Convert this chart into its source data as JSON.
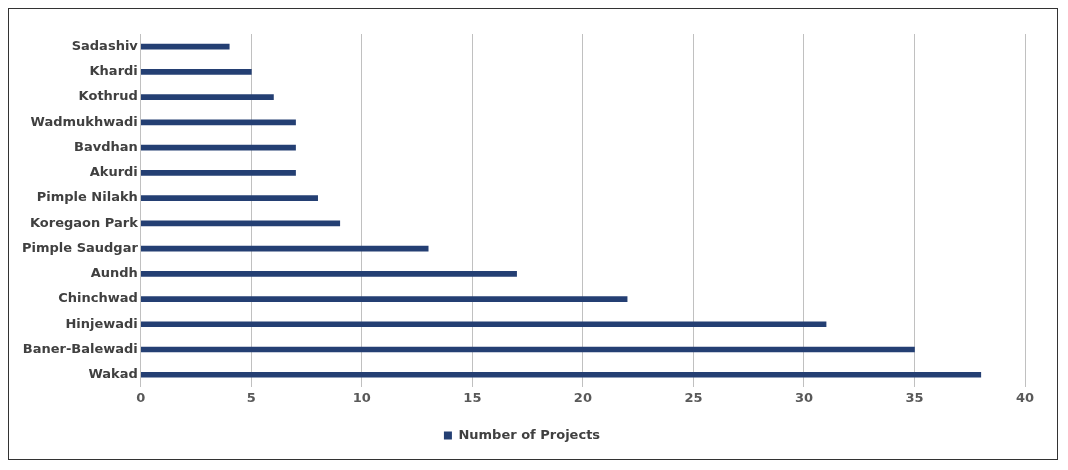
{
  "chart_data": {
    "type": "bar",
    "orientation": "horizontal",
    "categories": [
      "Sadashiv",
      "Khardi",
      "Kothrud",
      "Wadmukhwadi",
      "Bavdhan",
      "Akurdi",
      "Pimple Nilakh",
      "Koregaon Park",
      "Pimple Saudgar",
      "Aundh",
      "Chinchwad",
      "Hinjewadi",
      "Baner-Balewadi",
      "Wakad"
    ],
    "series": [
      {
        "name": "Number of Projects",
        "color": "#243f73",
        "values": [
          4,
          5,
          6,
          7,
          7,
          7,
          8,
          9,
          13,
          17,
          22,
          31,
          35,
          38
        ]
      }
    ],
    "xlim": [
      0,
      40
    ],
    "xticks": [
      0,
      5,
      10,
      15,
      20,
      25,
      30,
      35,
      40
    ],
    "grid": "x",
    "legend": "bottom"
  }
}
